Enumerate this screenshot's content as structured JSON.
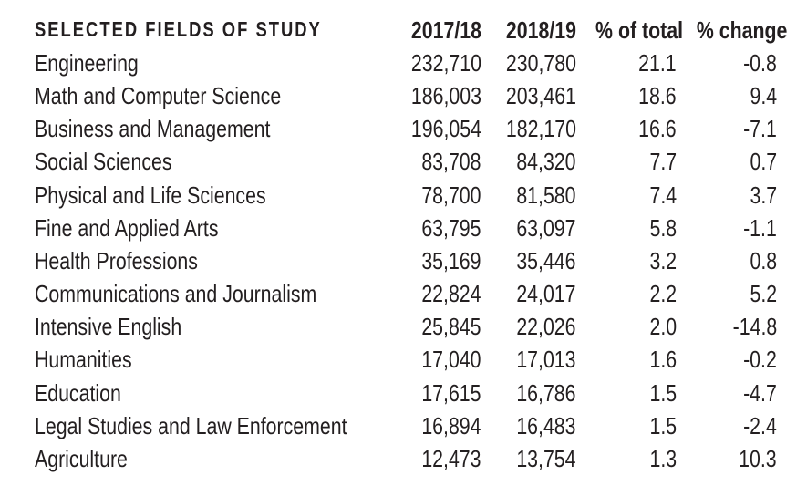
{
  "colors": {
    "background": "#ffffff",
    "text": "#231f20"
  },
  "table": {
    "columns": [
      "SELECTED FIELDS OF STUDY",
      "2017/18",
      "2018/19",
      "% of total",
      "% change"
    ],
    "rows": [
      {
        "field": "Engineering",
        "v2017_18": "232,710",
        "v2018_19": "230,780",
        "pct_of_total": "21.1",
        "pct_change": "-0.8"
      },
      {
        "field": "Math and Computer Science",
        "v2017_18": "186,003",
        "v2018_19": "203,461",
        "pct_of_total": "18.6",
        "pct_change": "9.4"
      },
      {
        "field": "Business and Management",
        "v2017_18": "196,054",
        "v2018_19": "182,170",
        "pct_of_total": "16.6",
        "pct_change": "-7.1"
      },
      {
        "field": "Social Sciences",
        "v2017_18": "83,708",
        "v2018_19": "84,320",
        "pct_of_total": "7.7",
        "pct_change": "0.7"
      },
      {
        "field": "Physical and Life Sciences",
        "v2017_18": "78,700",
        "v2018_19": "81,580",
        "pct_of_total": "7.4",
        "pct_change": "3.7"
      },
      {
        "field": "Fine and Applied Arts",
        "v2017_18": "63,795",
        "v2018_19": "63,097",
        "pct_of_total": "5.8",
        "pct_change": "-1.1"
      },
      {
        "field": "Health Professions",
        "v2017_18": "35,169",
        "v2018_19": "35,446",
        "pct_of_total": "3.2",
        "pct_change": "0.8"
      },
      {
        "field": "Communications and Journalism",
        "v2017_18": "22,824",
        "v2018_19": "24,017",
        "pct_of_total": "2.2",
        "pct_change": "5.2"
      },
      {
        "field": "Intensive English",
        "v2017_18": "25,845",
        "v2018_19": "22,026",
        "pct_of_total": "2.0",
        "pct_change": "-14.8"
      },
      {
        "field": "Humanities",
        "v2017_18": "17,040",
        "v2018_19": "17,013",
        "pct_of_total": "1.6",
        "pct_change": "-0.2"
      },
      {
        "field": "Education",
        "v2017_18": "17,615",
        "v2018_19": "16,786",
        "pct_of_total": "1.5",
        "pct_change": "-4.7"
      },
      {
        "field": "Legal Studies and Law Enforcement",
        "v2017_18": "16,894",
        "v2018_19": "16,483",
        "pct_of_total": "1.5",
        "pct_change": "-2.4"
      },
      {
        "field": "Agriculture",
        "v2017_18": "12,473",
        "v2018_19": "13,754",
        "pct_of_total": "1.3",
        "pct_change": "10.3"
      }
    ]
  },
  "chart_data": {
    "type": "table",
    "title": "SELECTED FIELDS OF STUDY",
    "columns": [
      "SELECTED FIELDS OF STUDY",
      "2017/18",
      "2018/19",
      "% of total",
      "% change"
    ],
    "rows": [
      [
        "Engineering",
        232710,
        230780,
        21.1,
        -0.8
      ],
      [
        "Math and Computer Science",
        186003,
        203461,
        18.6,
        9.4
      ],
      [
        "Business and Management",
        196054,
        182170,
        16.6,
        -7.1
      ],
      [
        "Social Sciences",
        83708,
        84320,
        7.7,
        0.7
      ],
      [
        "Physical and Life Sciences",
        78700,
        81580,
        7.4,
        3.7
      ],
      [
        "Fine and Applied Arts",
        63795,
        63097,
        5.8,
        -1.1
      ],
      [
        "Health Professions",
        35169,
        35446,
        3.2,
        0.8
      ],
      [
        "Communications and Journalism",
        22824,
        24017,
        2.2,
        5.2
      ],
      [
        "Intensive English",
        25845,
        22026,
        2.0,
        -14.8
      ],
      [
        "Humanities",
        17040,
        17013,
        1.6,
        -0.2
      ],
      [
        "Education",
        17615,
        16786,
        1.5,
        -4.7
      ],
      [
        "Legal Studies and Law Enforcement",
        16894,
        16483,
        1.5,
        -2.4
      ],
      [
        "Agriculture",
        12473,
        13754,
        1.3,
        10.3
      ]
    ]
  }
}
